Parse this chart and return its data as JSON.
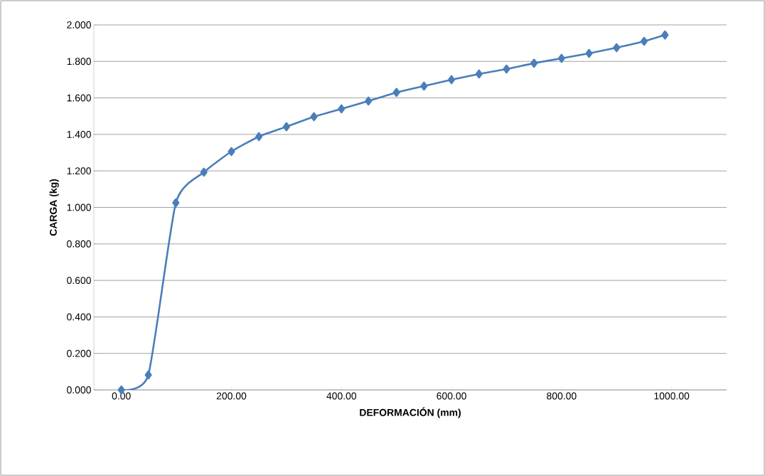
{
  "chart_data": {
    "type": "line",
    "xlabel": "DEFORMACIÓN (mm)",
    "ylabel": "CARGA (kg)",
    "x": [
      0,
      49,
      99,
      150,
      200,
      250,
      300,
      350,
      400,
      449,
      500,
      550,
      600,
      650,
      700,
      750,
      800,
      850,
      900,
      950,
      988
    ],
    "series": [
      {
        "color": "#4a7ebb",
        "values": [
          0,
          0.082,
          1.025,
          1.193,
          1.306,
          1.388,
          1.442,
          1.497,
          1.54,
          1.583,
          1.63,
          1.665,
          1.7,
          1.731,
          1.758,
          1.79,
          1.817,
          1.844,
          1.875,
          1.91,
          1.945
        ]
      }
    ],
    "xlim": [
      -50,
      1100
    ],
    "ylim": [
      0,
      2
    ],
    "xticks": [
      {
        "value": 0,
        "label": "0.00"
      },
      {
        "value": 200,
        "label": "200.00"
      },
      {
        "value": 400,
        "label": "400.00"
      },
      {
        "value": 600,
        "label": "600.00"
      },
      {
        "value": 800,
        "label": "800.00"
      },
      {
        "value": 1000,
        "label": "1000.00"
      }
    ],
    "yticks": [
      {
        "value": 0,
        "label": "0.000"
      },
      {
        "value": 0.2,
        "label": "0.200"
      },
      {
        "value": 0.4,
        "label": "0.400"
      },
      {
        "value": 0.6,
        "label": "0.600"
      },
      {
        "value": 0.8,
        "label": "0.800"
      },
      {
        "value": 1,
        "label": "1.000"
      },
      {
        "value": 1.2,
        "label": "1.200"
      },
      {
        "value": 1.4,
        "label": "1.400"
      },
      {
        "value": 1.6,
        "label": "1.600"
      },
      {
        "value": 1.8,
        "label": "1.800"
      },
      {
        "value": 2,
        "label": "2.000"
      }
    ],
    "grid": "y",
    "marker": "diamond",
    "line_style": "solid"
  }
}
